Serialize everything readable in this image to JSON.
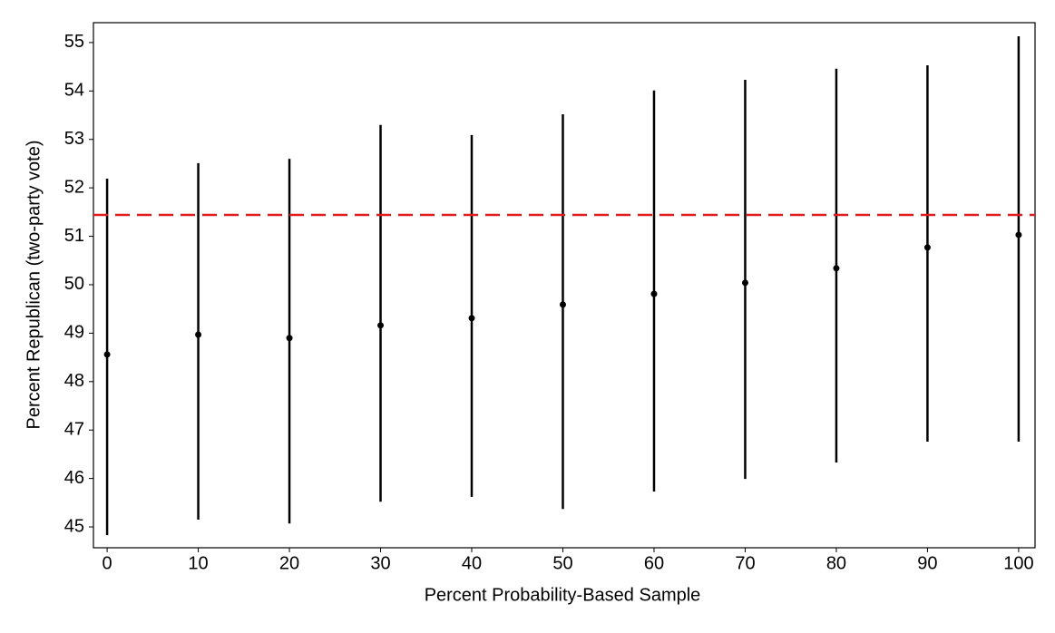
{
  "chart_data": {
    "type": "errorbar",
    "x_label": "Percent Probability-Based Sample",
    "y_label": "Percent Republican (two-party vote)",
    "x": [
      0,
      10,
      20,
      30,
      40,
      50,
      60,
      70,
      80,
      90,
      100
    ],
    "values": [
      48.56,
      48.97,
      48.9,
      49.16,
      49.31,
      49.59,
      49.81,
      50.04,
      50.34,
      50.77,
      51.03
    ],
    "lower": [
      44.83,
      45.15,
      45.07,
      45.52,
      45.62,
      45.37,
      45.73,
      45.99,
      46.33,
      46.76,
      46.76
    ],
    "upper": [
      52.19,
      52.51,
      52.6,
      53.3,
      53.09,
      53.52,
      54.01,
      54.23,
      54.46,
      54.53,
      55.13
    ],
    "color": "#000000",
    "reference_line": {
      "value": 51.44,
      "color": "#e31a1c"
    },
    "xlim": [
      -1.5,
      101.8
    ],
    "xticks": [
      0,
      10,
      20,
      30,
      40,
      50,
      60,
      70,
      80,
      90,
      100
    ],
    "ylim": [
      44.57,
      55.41
    ],
    "yticks": [
      45,
      46,
      47,
      48,
      49,
      50,
      51,
      52,
      53,
      54,
      55
    ],
    "grid": false
  }
}
